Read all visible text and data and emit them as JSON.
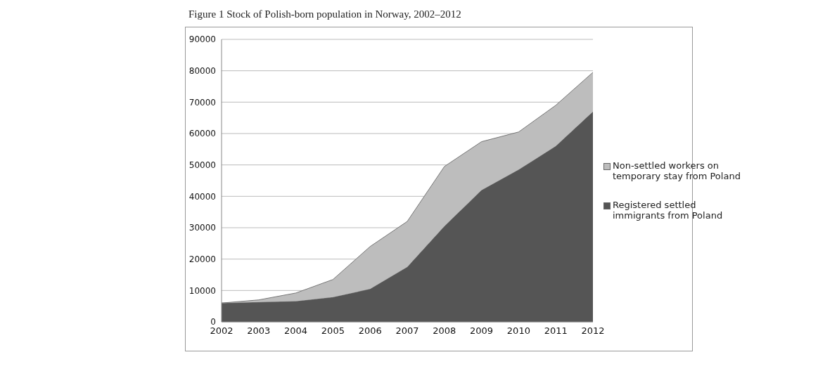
{
  "chart_data": {
    "type": "area",
    "title": "Figure 1 Stock of Polish-born population in Norway, 2002–2012",
    "stacked": true,
    "categories": [
      "2002",
      "2003",
      "2004",
      "2005",
      "2006",
      "2007",
      "2008",
      "2009",
      "2010",
      "2011",
      "2012"
    ],
    "series": [
      {
        "name": "Registered settled immigrants from Poland",
        "color": "#555555",
        "values": [
          6000,
          6300,
          6600,
          7900,
          10500,
          17500,
          30500,
          42000,
          48500,
          56000,
          67000
        ]
      },
      {
        "name": "Non-settled workers on temporary stay from Poland",
        "color": "#bdbdbd",
        "values": [
          0,
          700,
          2600,
          5600,
          13500,
          14500,
          19000,
          15400,
          12000,
          13000,
          12500
        ]
      }
    ],
    "ylim": [
      0,
      90000
    ],
    "yticks": [
      0,
      10000,
      20000,
      30000,
      40000,
      50000,
      60000,
      70000,
      80000,
      90000
    ],
    "grid": "y",
    "legend": "right"
  }
}
